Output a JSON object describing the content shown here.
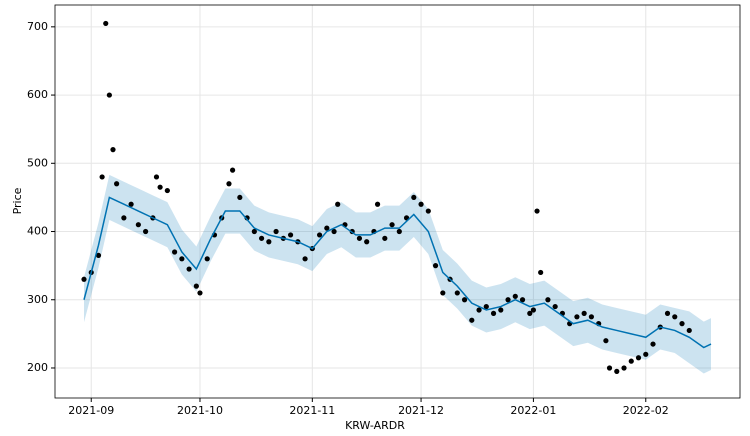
{
  "chart_data": {
    "type": "forecast",
    "xlabel": "KRW-ARDR",
    "ylabel": "Price",
    "xlim": [
      "2021-08-22",
      "2022-02-27"
    ],
    "xticks": [
      {
        "value": "2021-09-01",
        "label": "2021-09"
      },
      {
        "value": "2021-10-01",
        "label": "2021-10"
      },
      {
        "value": "2021-11-01",
        "label": "2021-11"
      },
      {
        "value": "2021-12-01",
        "label": "2021-12"
      },
      {
        "value": "2022-01-01",
        "label": "2022-01"
      },
      {
        "value": "2022-02-01",
        "label": "2022-02"
      }
    ],
    "ylim": [
      156,
      732
    ],
    "yticks": [
      200,
      300,
      400,
      500,
      600,
      700
    ],
    "grid": true,
    "point_color": "#000000",
    "line_color": "#0072B2",
    "band_color": "#0072B2",
    "points": {
      "x": [
        "2021-08-30",
        "2021-09-01",
        "2021-09-03",
        "2021-09-04",
        "2021-09-05",
        "2021-09-06",
        "2021-09-07",
        "2021-09-08",
        "2021-09-10",
        "2021-09-12",
        "2021-09-14",
        "2021-09-16",
        "2021-09-18",
        "2021-09-19",
        "2021-09-20",
        "2021-09-22",
        "2021-09-24",
        "2021-09-26",
        "2021-09-28",
        "2021-09-30",
        "2021-10-01",
        "2021-10-03",
        "2021-10-05",
        "2021-10-07",
        "2021-10-09",
        "2021-10-10",
        "2021-10-12",
        "2021-10-14",
        "2021-10-16",
        "2021-10-18",
        "2021-10-20",
        "2021-10-22",
        "2021-10-24",
        "2021-10-26",
        "2021-10-28",
        "2021-10-30",
        "2021-11-01",
        "2021-11-03",
        "2021-11-05",
        "2021-11-07",
        "2021-11-08",
        "2021-11-10",
        "2021-11-12",
        "2021-11-14",
        "2021-11-16",
        "2021-11-18",
        "2021-11-19",
        "2021-11-21",
        "2021-11-23",
        "2021-11-25",
        "2021-11-27",
        "2021-11-29",
        "2021-12-01",
        "2021-12-03",
        "2021-12-05",
        "2021-12-07",
        "2021-12-09",
        "2021-12-11",
        "2021-12-13",
        "2021-12-15",
        "2021-12-17",
        "2021-12-19",
        "2021-12-21",
        "2021-12-23",
        "2021-12-25",
        "2021-12-27",
        "2021-12-29",
        "2021-12-31",
        "2022-01-01",
        "2022-01-02",
        "2022-01-03",
        "2022-01-05",
        "2022-01-07",
        "2022-01-09",
        "2022-01-11",
        "2022-01-13",
        "2022-01-15",
        "2022-01-17",
        "2022-01-19",
        "2022-01-21",
        "2022-01-22",
        "2022-01-24",
        "2022-01-26",
        "2022-01-28",
        "2022-01-30",
        "2022-02-01",
        "2022-02-03",
        "2022-02-05",
        "2022-02-07",
        "2022-02-09",
        "2022-02-11",
        "2022-02-13"
      ],
      "values": [
        330,
        340,
        365,
        480,
        705,
        600,
        520,
        470,
        420,
        440,
        410,
        400,
        420,
        480,
        465,
        460,
        370,
        360,
        345,
        320,
        310,
        360,
        395,
        420,
        470,
        490,
        450,
        420,
        400,
        390,
        385,
        400,
        390,
        395,
        385,
        360,
        375,
        395,
        405,
        400,
        440,
        410,
        400,
        390,
        385,
        400,
        440,
        390,
        410,
        400,
        420,
        450,
        440,
        430,
        350,
        310,
        330,
        310,
        300,
        270,
        285,
        290,
        280,
        285,
        300,
        305,
        300,
        280,
        285,
        430,
        340,
        300,
        290,
        280,
        265,
        275,
        280,
        275,
        265,
        240,
        200,
        195,
        200,
        210,
        215,
        220,
        235,
        260,
        280,
        275,
        265,
        255
      ]
    },
    "forecast": {
      "x": [
        "2021-08-30",
        "2021-09-03",
        "2021-09-06",
        "2021-09-10",
        "2021-09-14",
        "2021-09-18",
        "2021-09-22",
        "2021-09-26",
        "2021-09-30",
        "2021-10-04",
        "2021-10-08",
        "2021-10-12",
        "2021-10-16",
        "2021-10-20",
        "2021-10-24",
        "2021-10-28",
        "2021-11-01",
        "2021-11-05",
        "2021-11-09",
        "2021-11-13",
        "2021-11-17",
        "2021-11-21",
        "2021-11-25",
        "2021-11-29",
        "2021-12-03",
        "2021-12-07",
        "2021-12-11",
        "2021-12-15",
        "2021-12-19",
        "2021-12-23",
        "2021-12-27",
        "2021-12-31",
        "2022-01-04",
        "2022-01-08",
        "2022-01-12",
        "2022-01-16",
        "2022-01-20",
        "2022-01-24",
        "2022-01-28",
        "2022-02-01",
        "2022-02-05",
        "2022-02-09",
        "2022-02-13",
        "2022-02-17",
        "2022-02-19"
      ],
      "values": [
        300,
        380,
        450,
        440,
        430,
        420,
        410,
        370,
        345,
        390,
        430,
        430,
        405,
        395,
        390,
        385,
        375,
        400,
        410,
        395,
        395,
        405,
        405,
        425,
        400,
        340,
        320,
        295,
        285,
        290,
        300,
        290,
        295,
        280,
        265,
        270,
        260,
        255,
        250,
        245,
        260,
        255,
        245,
        230,
        235
      ],
      "lower": [
        267,
        347,
        417,
        407,
        397,
        387,
        377,
        337,
        312,
        357,
        397,
        397,
        372,
        362,
        357,
        352,
        342,
        367,
        377,
        362,
        362,
        372,
        372,
        392,
        367,
        307,
        287,
        262,
        252,
        257,
        267,
        257,
        262,
        247,
        232,
        237,
        227,
        222,
        217,
        212,
        227,
        222,
        207,
        192,
        197
      ],
      "upper": [
        333,
        413,
        483,
        473,
        463,
        453,
        443,
        403,
        378,
        423,
        463,
        463,
        438,
        428,
        423,
        418,
        408,
        433,
        443,
        428,
        428,
        438,
        438,
        458,
        433,
        373,
        353,
        328,
        318,
        323,
        333,
        323,
        328,
        313,
        298,
        303,
        293,
        288,
        283,
        278,
        293,
        288,
        283,
        268,
        273
      ]
    }
  }
}
